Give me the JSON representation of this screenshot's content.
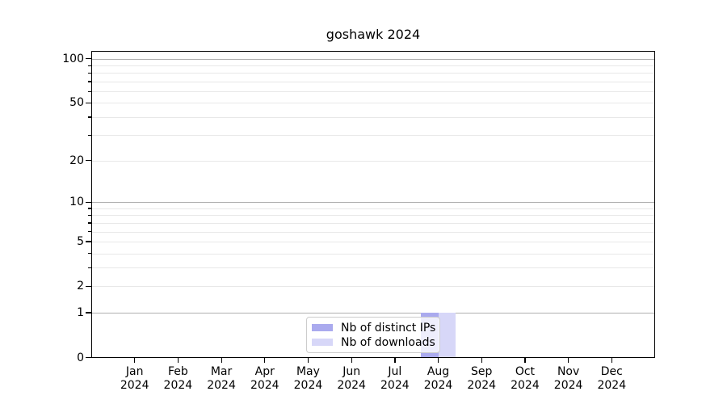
{
  "chart_data": {
    "type": "bar",
    "title": "goshawk 2024",
    "x_ticks": [
      {
        "month": "Jan",
        "year": "2024"
      },
      {
        "month": "Feb",
        "year": "2024"
      },
      {
        "month": "Mar",
        "year": "2024"
      },
      {
        "month": "Apr",
        "year": "2024"
      },
      {
        "month": "May",
        "year": "2024"
      },
      {
        "month": "Jun",
        "year": "2024"
      },
      {
        "month": "Jul",
        "year": "2024"
      },
      {
        "month": "Aug",
        "year": "2024"
      },
      {
        "month": "Sep",
        "year": "2024"
      },
      {
        "month": "Oct",
        "year": "2024"
      },
      {
        "month": "Nov",
        "year": "2024"
      },
      {
        "month": "Dec",
        "year": "2024"
      }
    ],
    "series": [
      {
        "name": "Nb of distinct IPs",
        "color": "#aaaaee",
        "values": [
          0,
          0,
          0,
          0,
          0,
          0,
          0,
          1,
          0,
          0,
          0,
          0
        ]
      },
      {
        "name": "Nb of downloads",
        "color": "#d7d7f8",
        "values": [
          0,
          0,
          0,
          0,
          0,
          0,
          0,
          1,
          0,
          0,
          0,
          0
        ]
      }
    ],
    "y_scale": "log1p",
    "ylim": [
      0,
      113
    ],
    "y_tick_labels": [
      0,
      1,
      2,
      5,
      10,
      20,
      50,
      100
    ],
    "y_major_gridlines": [
      1,
      10,
      100
    ],
    "y_minor_gridlines": [
      2,
      3,
      4,
      5,
      6,
      7,
      8,
      9,
      20,
      30,
      40,
      50,
      60,
      70,
      80,
      90
    ],
    "legend_position": "lower center",
    "grid": "horizontal only",
    "colors": {
      "major_grid": "#b0b0b0",
      "minor_grid": "#e8e8e8",
      "axis": "#000000",
      "text": "#000000",
      "legend_border": "#cccccc"
    }
  }
}
